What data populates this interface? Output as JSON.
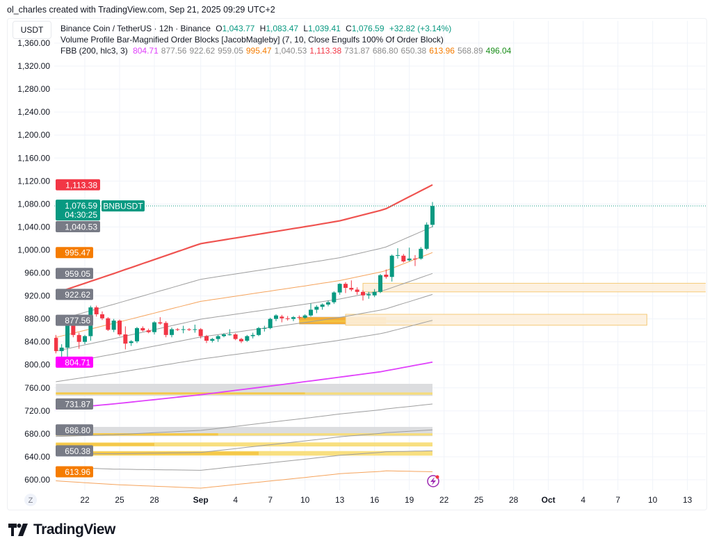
{
  "credit": "ol_charles created with TradingView.com, Sep 21, 2025 09:29 UTC+2",
  "unit": "USDT",
  "legend": {
    "symbol": "Binance Coin / TetherUS · 12h · Binance",
    "o_label": "O",
    "o": "1,043.77",
    "h_label": "H",
    "h": "1,083.47",
    "l_label": "L",
    "l": "1,039.41",
    "c_label": "C",
    "c": "1,076.59",
    "change": "+32.82 (+3.14%)",
    "indicator1": "Volume Profile Bar-Magnified Order Blocks [JacobMagleby] (7, 10, Close Engulfs 100% Of Order Block)",
    "indicator2": "FBB (200, hlc3, 3)",
    "fbb_values": [
      {
        "v": "804.71",
        "color": "#e040fb"
      },
      {
        "v": "877.56",
        "color": "#8c8c8c"
      },
      {
        "v": "922.62",
        "color": "#8c8c8c"
      },
      {
        "v": "959.05",
        "color": "#8c8c8c"
      },
      {
        "v": "995.47",
        "color": "#f57c00"
      },
      {
        "v": "1,040.53",
        "color": "#8c8c8c"
      },
      {
        "v": "1,113.38",
        "color": "#f23645"
      },
      {
        "v": "731.87",
        "color": "#8c8c8c"
      },
      {
        "v": "686.80",
        "color": "#8c8c8c"
      },
      {
        "v": "650.38",
        "color": "#8c8c8c"
      },
      {
        "v": "613.96",
        "color": "#f57c00"
      },
      {
        "v": "568.89",
        "color": "#8c8c8c"
      },
      {
        "v": "496.04",
        "color": "#1b8e1b"
      }
    ]
  },
  "brand": "TradingView",
  "chart_data": {
    "type": "candlestick",
    "symbol": "BNBUSDT",
    "interval": "12h",
    "ylim": [
      600,
      1360
    ],
    "yticks": [
      600,
      640,
      680,
      720,
      760,
      800,
      840,
      880,
      920,
      960,
      1000,
      1040,
      1080,
      1120,
      1160,
      1200,
      1240,
      1280,
      1320,
      1360
    ],
    "xticks": [
      {
        "label": "22",
        "t": "08-22 00",
        "bold": false
      },
      {
        "label": "25",
        "t": "08-25 00",
        "bold": false
      },
      {
        "label": "28",
        "t": "08-28 00",
        "bold": false
      },
      {
        "label": "Sep",
        "t": "09-01 00",
        "bold": true
      },
      {
        "label": "4",
        "t": "09-04 00",
        "bold": false
      },
      {
        "label": "7",
        "t": "09-07 00",
        "bold": false
      },
      {
        "label": "10",
        "t": "09-10 00",
        "bold": false
      },
      {
        "label": "13",
        "t": "09-13 00",
        "bold": false
      },
      {
        "label": "16",
        "t": "09-16 00",
        "bold": false
      },
      {
        "label": "19",
        "t": "09-19 00",
        "bold": false
      },
      {
        "label": "22",
        "t": "09-22 00",
        "bold": false
      },
      {
        "label": "25",
        "t": "09-25 00",
        "bold": false
      },
      {
        "label": "28",
        "t": "09-28 00",
        "bold": false
      },
      {
        "label": "Oct",
        "t": "10-01 00",
        "bold": true
      },
      {
        "label": "4",
        "t": "10-04 00",
        "bold": false
      },
      {
        "label": "7",
        "t": "10-07 00",
        "bold": false
      },
      {
        "label": "10",
        "t": "10-10 00",
        "bold": false
      },
      {
        "label": "13",
        "t": "10-13 00",
        "bold": false
      }
    ],
    "timezone_button": "Z",
    "colors": {
      "up": "#089981",
      "down": "#f23645",
      "grid": "#f0f3fa"
    },
    "candles_columns": [
      "t",
      "open",
      "high",
      "low",
      "close"
    ],
    "candles": [
      [
        "08-19 12",
        847,
        852,
        820,
        824
      ],
      [
        "08-20 00",
        824,
        836,
        814,
        830
      ],
      [
        "08-20 12",
        830,
        887,
        812,
        869
      ],
      [
        "08-21 00",
        869,
        886,
        848,
        852
      ],
      [
        "08-21 12",
        852,
        856,
        828,
        840
      ],
      [
        "08-22 00",
        840,
        852,
        836,
        850
      ],
      [
        "08-22 12",
        850,
        903,
        842,
        900
      ],
      [
        "08-23 00",
        900,
        903,
        884,
        888
      ],
      [
        "08-23 12",
        888,
        893,
        878,
        881
      ],
      [
        "08-24 00",
        881,
        883,
        859,
        861
      ],
      [
        "08-24 12",
        861,
        880,
        857,
        877
      ],
      [
        "08-25 00",
        877,
        879,
        850,
        853
      ],
      [
        "08-25 12",
        853,
        867,
        827,
        837
      ],
      [
        "08-26 00",
        838,
        843,
        833,
        841
      ],
      [
        "08-26 12",
        841,
        866,
        838,
        864
      ],
      [
        "08-27 00",
        864,
        867,
        858,
        860
      ],
      [
        "08-27 12",
        860,
        863,
        855,
        857
      ],
      [
        "08-28 00",
        857,
        876,
        853,
        874
      ],
      [
        "08-28 12",
        874,
        883,
        870,
        872
      ],
      [
        "08-29 00",
        873,
        876,
        848,
        852
      ],
      [
        "08-29 12",
        852,
        865,
        848,
        862
      ],
      [
        "08-30 00",
        862,
        864,
        859,
        861
      ],
      [
        "08-30 12",
        861,
        868,
        855,
        862
      ],
      [
        "08-31 00",
        862,
        864,
        859,
        861
      ],
      [
        "08-31 12",
        861,
        870,
        856,
        862
      ],
      [
        "09-01 00",
        862,
        864,
        846,
        850
      ],
      [
        "09-01 12",
        850,
        852,
        838,
        842
      ],
      [
        "09-02 00",
        842,
        847,
        839,
        845
      ],
      [
        "09-02 12",
        845,
        852,
        840,
        850
      ],
      [
        "09-03 00",
        850,
        855,
        848,
        853
      ],
      [
        "09-03 12",
        853,
        862,
        851,
        853
      ],
      [
        "09-04 00",
        853,
        855,
        843,
        845
      ],
      [
        "09-04 12",
        845,
        847,
        838,
        841
      ],
      [
        "09-05 00",
        842,
        852,
        840,
        850
      ],
      [
        "09-05 12",
        850,
        856,
        846,
        852
      ],
      [
        "09-06 00",
        852,
        866,
        850,
        864
      ],
      [
        "09-06 12",
        864,
        868,
        858,
        864
      ],
      [
        "09-07 00",
        864,
        882,
        862,
        880
      ],
      [
        "09-07 12",
        880,
        888,
        876,
        886
      ],
      [
        "09-08 00",
        884,
        887,
        874,
        881
      ],
      [
        "09-08 12",
        881,
        885,
        877,
        880
      ],
      [
        "09-09 00",
        880,
        885,
        876,
        883
      ],
      [
        "09-09 12",
        883,
        886,
        879,
        882
      ],
      [
        "09-10 00",
        882,
        888,
        880,
        886
      ],
      [
        "09-10 12",
        886,
        907,
        884,
        896
      ],
      [
        "09-11 00",
        896,
        904,
        890,
        901
      ],
      [
        "09-11 12",
        901,
        907,
        896,
        905
      ],
      [
        "09-12 00",
        905,
        912,
        902,
        909
      ],
      [
        "09-12 12",
        909,
        928,
        906,
        926
      ],
      [
        "09-13 00",
        926,
        942,
        922,
        941
      ],
      [
        "09-13 12",
        941,
        944,
        925,
        934
      ],
      [
        "09-14 00",
        934,
        947,
        928,
        931
      ],
      [
        "09-14 12",
        931,
        935,
        922,
        927
      ],
      [
        "09-15 00",
        927,
        930,
        912,
        921
      ],
      [
        "09-15 12",
        921,
        927,
        915,
        923
      ],
      [
        "09-16 00",
        921,
        932,
        918,
        927
      ],
      [
        "09-16 12",
        927,
        958,
        925,
        956
      ],
      [
        "09-17 00",
        957,
        966,
        950,
        953
      ],
      [
        "09-17 12",
        953,
        992,
        945,
        990
      ],
      [
        "09-18 00",
        990,
        1003,
        985,
        991
      ],
      [
        "09-18 12",
        990,
        993,
        978,
        980
      ],
      [
        "09-19 00",
        982,
        1004,
        980,
        985
      ],
      [
        "09-19 12",
        985,
        991,
        972,
        984
      ],
      [
        "09-20 00",
        985,
        1005,
        983,
        1002
      ],
      [
        "09-20 12",
        1002,
        1048,
        1000,
        1044
      ],
      [
        "09-21 00",
        1043.77,
        1083.47,
        1039.41,
        1076.59
      ]
    ],
    "fbb": {
      "basis": [
        [
          "08-19 12",
          723
        ],
        [
          "08-24 12",
          732
        ],
        [
          "09-01 00",
          748
        ],
        [
          "09-10 12",
          772
        ],
        [
          "09-16 12",
          788
        ],
        [
          "09-21 00",
          804.71
        ]
      ],
      "width": [
        [
          "08-19 12",
          202
        ],
        [
          "08-24 12",
          227
        ],
        [
          "09-01 00",
          263
        ],
        [
          "09-13 00",
          272
        ],
        [
          "09-17 00",
          282
        ],
        [
          "09-21 00",
          308.67
        ]
      ],
      "levels": [
        {
          "k": 1,
          "color": "#ef5350",
          "label": "1,113.38"
        },
        {
          "k": 0.764,
          "color": "#9e9e9e",
          "label": "1,040.53"
        },
        {
          "k": 0.618,
          "color": "#f5a35c",
          "label": "995.47"
        },
        {
          "k": 0.5,
          "color": "#9e9e9e",
          "label": "959.05"
        },
        {
          "k": 0.382,
          "color": "#9e9e9e",
          "label": "922.62"
        },
        {
          "k": 0.236,
          "color": "#9e9e9e",
          "label": "877.56"
        },
        {
          "k": 0,
          "color": "#e040fb",
          "label": "804.71"
        },
        {
          "k": -0.236,
          "color": "#9e9e9e",
          "label": "731.87"
        },
        {
          "k": -0.382,
          "color": "#9e9e9e",
          "label": "686.80"
        },
        {
          "k": -0.5,
          "color": "#9e9e9e",
          "label": "650.38"
        },
        {
          "k": -0.618,
          "color": "#f5a35c",
          "label": "613.96"
        }
      ]
    },
    "order_blocks": [
      {
        "from": "09-15 00",
        "to": "10-15 00",
        "low": 927,
        "high": 942,
        "fill": "#fdf0dd",
        "border": "#f4c56a"
      },
      {
        "from": "09-13 12",
        "to": "10-09 12",
        "low": 869,
        "high": 888,
        "fill": "#fdf0dd",
        "border": "#f4c56a"
      }
    ],
    "volume_zones": [
      {
        "from": "08-19 12",
        "to": "09-21 00",
        "low": 746,
        "high": 767,
        "fill": "#d8d9dc",
        "bars": [
          {
            "low": 748,
            "high": 752,
            "to": "09-21 00",
            "color": "#f7dc72"
          },
          {
            "low": 749,
            "high": 752,
            "to": "09-10 00",
            "color": "#f4c542"
          }
        ]
      },
      {
        "from": "08-19 12",
        "to": "09-21 00",
        "low": 676,
        "high": 692,
        "fill": "#d8d9dc",
        "bars": [
          {
            "low": 677,
            "high": 681,
            "to": "09-21 00",
            "color": "#f7dc72"
          },
          {
            "low": 677,
            "high": 681,
            "to": "09-02 12",
            "color": "#f4c542"
          }
        ]
      },
      {
        "from": "08-19 12",
        "to": "09-21 00",
        "low": 658,
        "high": 665,
        "fill": "none",
        "bars": [
          {
            "low": 658,
            "high": 665,
            "to": "09-21 00",
            "color": "#f7dc72"
          },
          {
            "low": 659,
            "high": 664,
            "to": "08-28 00",
            "color": "#f4c542"
          }
        ]
      },
      {
        "from": "08-19 12",
        "to": "09-21 00",
        "low": 641,
        "high": 651,
        "fill": "none",
        "bars": [
          {
            "low": 642,
            "high": 650,
            "to": "09-21 00",
            "color": "#f7dc72"
          },
          {
            "low": 643,
            "high": 649,
            "to": "09-06 00",
            "color": "#f4c542"
          }
        ]
      },
      {
        "from": "09-09 12",
        "to": "09-21 00",
        "low": 870,
        "high": 884,
        "fill": "#d8d9dc",
        "bars": [
          {
            "low": 871,
            "high": 883,
            "to": "09-17 00",
            "color": "#f5a623"
          },
          {
            "low": 874,
            "high": 878,
            "to": "09-21 00",
            "color": "#f4c542"
          }
        ]
      }
    ],
    "last_price": {
      "value": "1,076.59",
      "price": 1076.59,
      "countdown": "04:30:25",
      "tag": "BNBUSDT",
      "color": "#089981"
    },
    "price_badges": [
      {
        "label": "1,113.38",
        "price": 1113.38,
        "bg": "#f23645"
      },
      {
        "label": "1,040.53",
        "price": 1040.53,
        "bg": "#787b86"
      },
      {
        "label": "995.47",
        "price": 995.47,
        "bg": "#f57c00"
      },
      {
        "label": "959.05",
        "price": 959.05,
        "bg": "#787b86"
      },
      {
        "label": "922.62",
        "price": 922.62,
        "bg": "#787b86"
      },
      {
        "label": "877.56",
        "price": 877.56,
        "bg": "#787b86"
      },
      {
        "label": "804.71",
        "price": 804.71,
        "bg": "#ff00ff"
      },
      {
        "label": "731.87",
        "price": 731.87,
        "bg": "#787b86"
      },
      {
        "label": "686.80",
        "price": 686.8,
        "bg": "#787b86"
      },
      {
        "label": "650.38",
        "price": 650.38,
        "bg": "#787b86"
      },
      {
        "label": "613.96",
        "price": 613.96,
        "bg": "#f57c00"
      }
    ]
  }
}
